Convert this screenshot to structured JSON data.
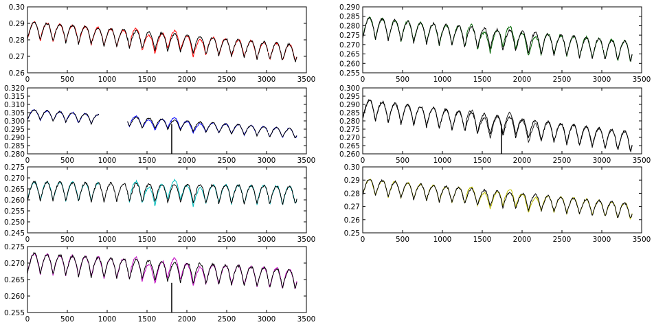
{
  "figure": {
    "background": "#ffffff"
  },
  "chart_data": [
    {
      "type": "line",
      "panel": "row1-left",
      "xlim": [
        0,
        3500
      ],
      "ylim": [
        0.255,
        0.3
      ],
      "xticks": [
        "0",
        "500",
        "1000",
        "1500",
        "2000",
        "2500",
        "3000",
        "3500"
      ],
      "yticks": [
        "0.26",
        "0.27",
        "0.28",
        "0.29",
        "0.30"
      ],
      "grid": false,
      "series": [
        {
          "color": "#ff0000",
          "segments": [
            [
              0,
              1255
            ],
            [
              1255,
              2240
            ],
            [
              2240,
              3020
            ],
            [
              3020,
              3380
            ]
          ]
        },
        {
          "color": "#000000",
          "segments": [
            [
              0,
              1270
            ],
            [
              1255,
              2240
            ],
            [
              2240,
              3020
            ],
            [
              3020,
              3380
            ]
          ]
        }
      ],
      "trend": {
        "start": 0.284,
        "end": 0.268,
        "amplitude": 0.01,
        "period": 160
      }
    },
    {
      "type": "line",
      "panel": "row1-right",
      "xlim": [
        0,
        3500
      ],
      "ylim": [
        0.255,
        0.29
      ],
      "xticks": [
        "0",
        "500",
        "1000",
        "1500",
        "2000",
        "2500",
        "3000",
        "3500"
      ],
      "yticks": [
        "0.255",
        "0.260",
        "0.265",
        "0.270",
        "0.275",
        "0.280",
        "0.285",
        "0.290"
      ],
      "grid": false,
      "series": [
        {
          "color": "#006400",
          "segments": [
            [
              0,
              1255
            ],
            [
              1255,
              2240
            ],
            [
              2240,
              3020
            ],
            [
              3020,
              3380
            ]
          ]
        },
        {
          "color": "#000000",
          "segments": [
            [
              0,
              1270
            ],
            [
              1255,
              2240
            ],
            [
              2240,
              3020
            ],
            [
              3020,
              3380
            ]
          ]
        }
      ],
      "trend": {
        "start": 0.279,
        "end": 0.266,
        "amplitude": 0.009,
        "period": 160
      }
    },
    {
      "type": "line",
      "panel": "row2-left",
      "xlim": [
        0,
        3500
      ],
      "ylim": [
        0.28,
        0.32
      ],
      "xticks": [
        "0",
        "500",
        "1000",
        "1500",
        "2000",
        "2500",
        "3000",
        "3500"
      ],
      "yticks": [
        "0.280",
        "0.285",
        "0.290",
        "0.295",
        "0.300",
        "0.305",
        "0.310",
        "0.315",
        "0.320"
      ],
      "grid": false,
      "series": [
        {
          "color": "#0000ff",
          "segments": [
            [
              0,
              900
            ],
            [
              1255,
              3020
            ],
            [
              3020,
              3380
            ]
          ]
        },
        {
          "color": "#000000",
          "segments": [
            [
              0,
              900
            ],
            [
              1255,
              3020
            ],
            [
              3020,
              3380
            ]
          ]
        }
      ],
      "trend": {
        "start": 0.304,
        "end": 0.292,
        "amplitude": 0.005,
        "period": 160
      },
      "spike_x": 1810
    },
    {
      "type": "line",
      "panel": "row2-right",
      "xlim": [
        0,
        3500
      ],
      "ylim": [
        0.26,
        0.3
      ],
      "xticks": [
        "0",
        "500",
        "1000",
        "1500",
        "2000",
        "2500",
        "3000",
        "3500"
      ],
      "yticks": [
        "0.260",
        "0.265",
        "0.270",
        "0.275",
        "0.280",
        "0.285",
        "0.290",
        "0.295",
        "0.300"
      ],
      "grid": false,
      "series": [
        {
          "color": "#222222",
          "segments": [
            [
              0,
              1255
            ],
            [
              1255,
              2240
            ],
            [
              2240,
              3020
            ],
            [
              3020,
              3380
            ]
          ]
        },
        {
          "color": "#000000",
          "segments": [
            [
              0,
              1270
            ],
            [
              1255,
              2240
            ],
            [
              2240,
              3020
            ],
            [
              3020,
              3380
            ]
          ]
        }
      ],
      "trend": {
        "start": 0.287,
        "end": 0.267,
        "amplitude": 0.01,
        "period": 160
      },
      "spike_x": 1740
    },
    {
      "type": "line",
      "panel": "row3-left",
      "xlim": [
        0,
        3500
      ],
      "ylim": [
        0.245,
        0.275
      ],
      "xticks": [
        "0",
        "500",
        "1000",
        "1500",
        "2000",
        "2500",
        "3000",
        "3500"
      ],
      "yticks": [
        "0.245",
        "0.250",
        "0.255",
        "0.260",
        "0.265",
        "0.270",
        "0.275"
      ],
      "grid": false,
      "series": [
        {
          "color": "#00bfbf",
          "segments": [
            [
              0,
              900
            ],
            [
              1255,
              2240
            ],
            [
              2240,
              3020
            ],
            [
              3020,
              3380
            ]
          ]
        },
        {
          "color": "#000000",
          "segments": [
            [
              0,
              1270
            ],
            [
              1255,
              2240
            ],
            [
              2240,
              3020
            ],
            [
              3020,
              3380
            ]
          ]
        }
      ],
      "trend": {
        "start": 0.264,
        "end": 0.262,
        "amplitude": 0.007,
        "period": 160
      }
    },
    {
      "type": "line",
      "panel": "row3-right",
      "xlim": [
        0,
        3500
      ],
      "ylim": [
        0.25,
        0.3
      ],
      "xticks": [
        "0",
        "500",
        "1000",
        "1500",
        "2000",
        "2500",
        "3000",
        "3500"
      ],
      "yticks": [
        "0.25",
        "0.26",
        "0.27",
        "0.28",
        "0.29",
        "0.30"
      ],
      "grid": false,
      "series": [
        {
          "color": "#bfbf00",
          "segments": [
            [
              0,
              1255
            ],
            [
              1255,
              2240
            ],
            [
              2240,
              3020
            ],
            [
              3020,
              3380
            ]
          ]
        },
        {
          "color": "#000000",
          "segments": [
            [
              0,
              1270
            ],
            [
              1255,
              2240
            ],
            [
              2240,
              3020
            ],
            [
              3020,
              3380
            ]
          ]
        }
      ],
      "trend": {
        "start": 0.285,
        "end": 0.266,
        "amplitude": 0.01,
        "period": 160
      }
    },
    {
      "type": "line",
      "panel": "row4-left",
      "xlim": [
        0,
        3500
      ],
      "ylim": [
        0.255,
        0.275
      ],
      "xticks": [
        "0",
        "500",
        "1000",
        "1500",
        "2000",
        "2500",
        "3000",
        "3500"
      ],
      "yticks": [
        "0.255",
        "0.260",
        "0.265",
        "0.270",
        "0.275"
      ],
      "grid": false,
      "series": [
        {
          "color": "#bf00bf",
          "segments": [
            [
              0,
              1255
            ],
            [
              1255,
              2240
            ],
            [
              2240,
              3020
            ],
            [
              3020,
              3380
            ]
          ]
        },
        {
          "color": "#000000",
          "segments": [
            [
              0,
              1270
            ],
            [
              1255,
              2240
            ],
            [
              2240,
              3020
            ],
            [
              3020,
              3380
            ]
          ]
        }
      ],
      "trend": {
        "start": 0.27,
        "end": 0.265,
        "amplitude": 0.005,
        "period": 160
      },
      "spike_x": 1810
    }
  ]
}
